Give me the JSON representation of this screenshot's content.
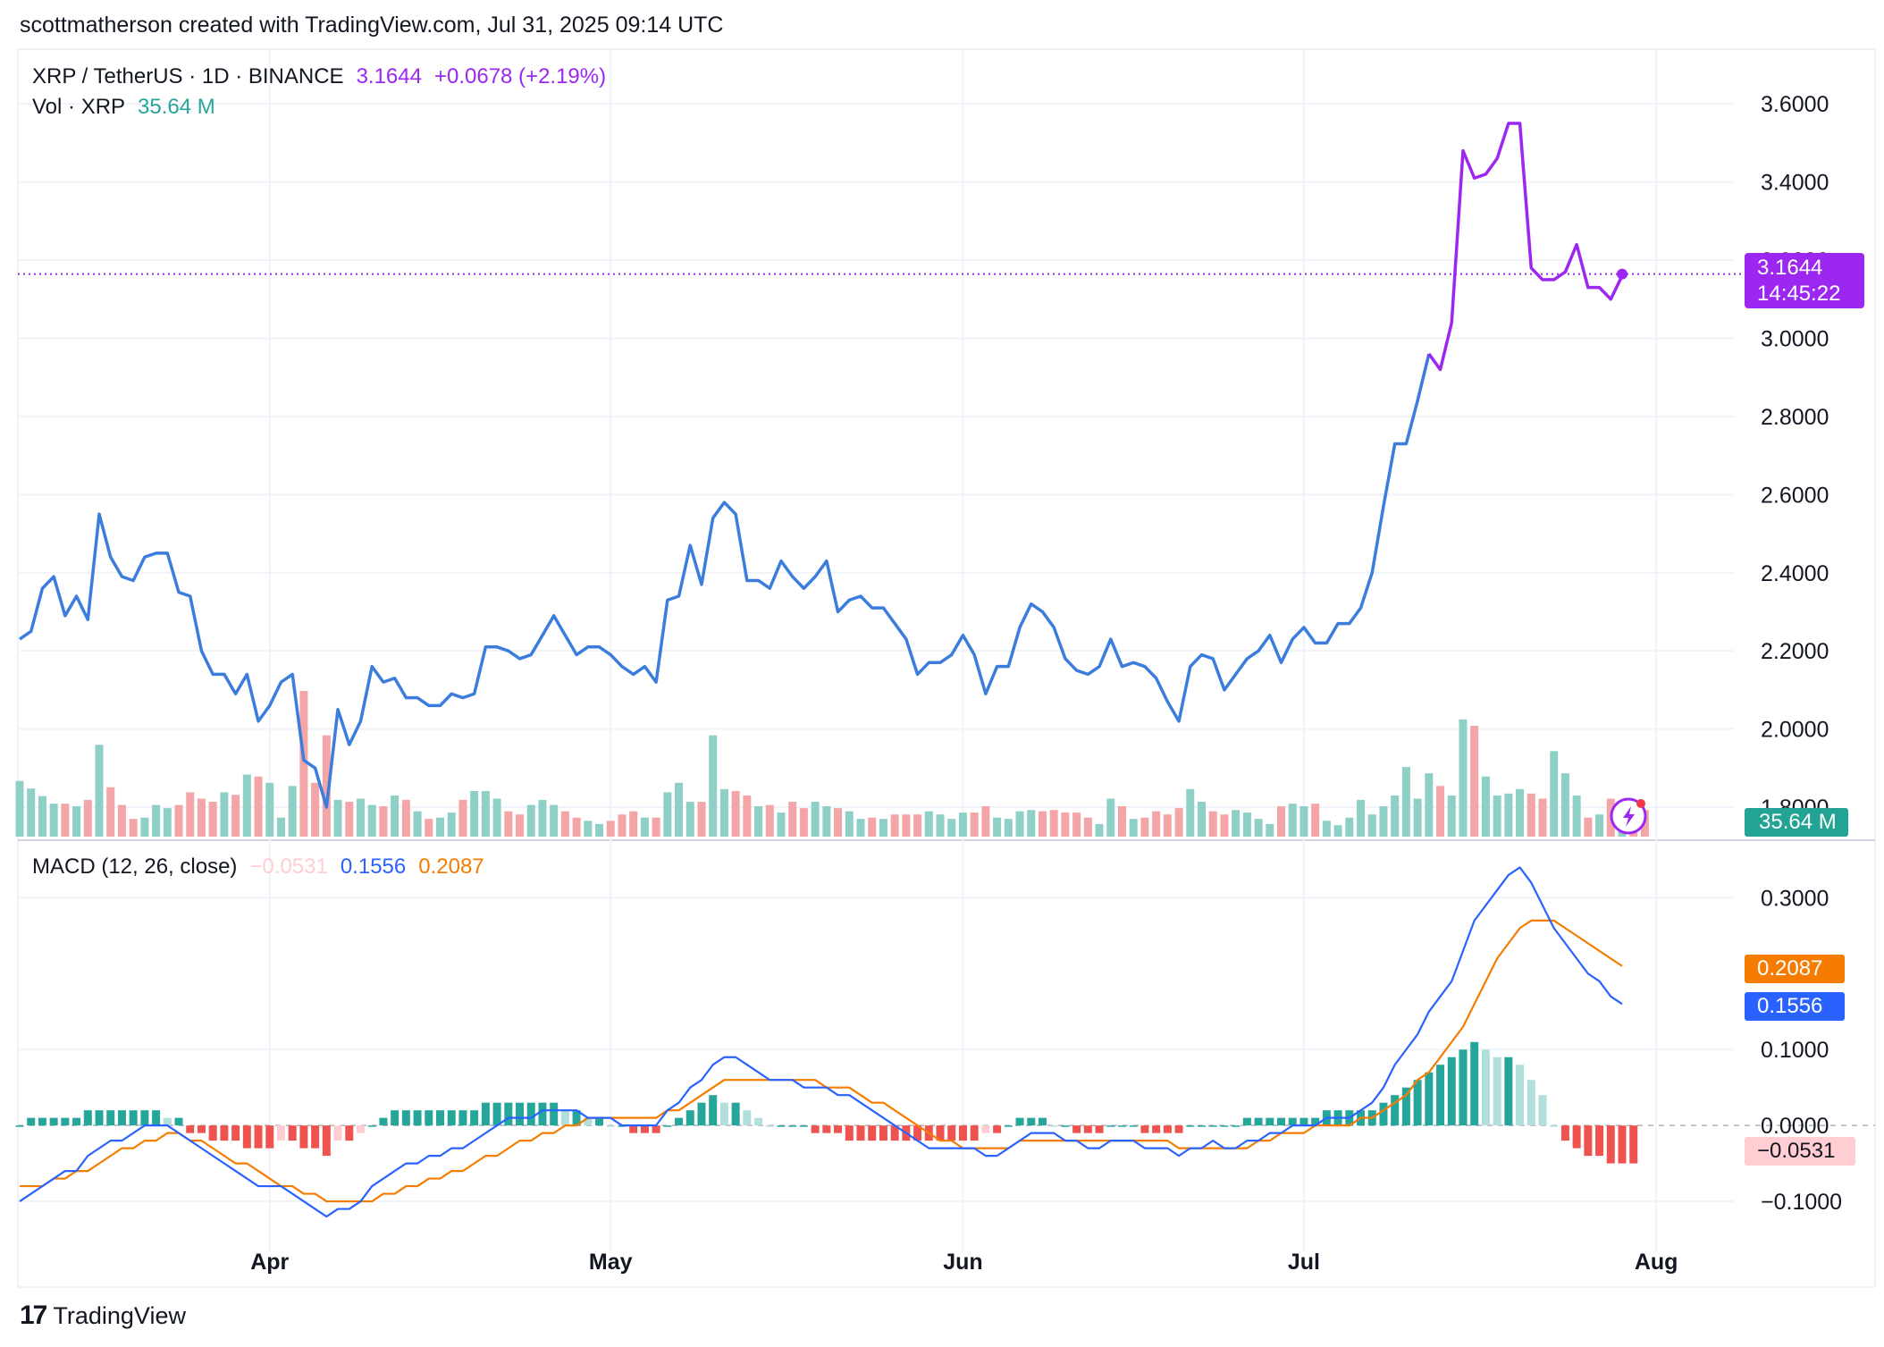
{
  "header": {
    "attribution": "scottmatherson created with TradingView.com, Jul 31, 2025 09:14 UTC"
  },
  "legend": {
    "symbol": "XRP / TetherUS · 1D · BINANCE",
    "price": "3.1644",
    "change": "+0.0678 (+2.19%)",
    "volume_label": "Vol · XRP",
    "volume_value": "35.64 M",
    "macd_label": "MACD (12, 26, close)",
    "macd_hist": "−0.0531",
    "macd_line": "0.1556",
    "macd_signal": "0.2087"
  },
  "tags": {
    "price": "3.1644",
    "countdown": "14:45:22",
    "volume": "35.64 M",
    "signal": "0.2087",
    "macd": "0.1556",
    "hist": "−0.0531"
  },
  "footer": {
    "brand": "TradingView",
    "logo_icon": "tradingview-logo-icon"
  },
  "colors": {
    "price_line": "#3b7ddd",
    "price_line_recent": "#9c27f0",
    "volume_up": "#8fd0c6",
    "volume_down": "#f4a5a8",
    "macd_line": "#2962ff",
    "signal_line": "#f57c00",
    "hist_up_strong": "#26a69a",
    "hist_up_weak": "#b2dfdb",
    "hist_down_strong": "#ef5350",
    "hist_down_weak": "#ffcdd2",
    "grid": "#f0f3fa",
    "text": "#131722"
  },
  "chart_data": [
    {
      "type": "line",
      "title": "XRP / TetherUS · 1D · BINANCE",
      "x_range": [
        "2025-03-10",
        "2025-07-31"
      ],
      "x_tick_labels": [
        "Apr",
        "May",
        "Jun",
        "Jul",
        "Aug"
      ],
      "y_tick_labels": [
        "1.8000",
        "2.0000",
        "2.2000",
        "2.4000",
        "2.6000",
        "2.8000",
        "3.0000",
        "3.2000",
        "3.4000",
        "3.6000"
      ],
      "ylim": [
        1.72,
        3.74
      ],
      "y_axis_side": "right",
      "grid": true,
      "last_value": 3.1644,
      "series": [
        {
          "values": [
            2.23,
            2.25,
            2.36,
            2.39,
            2.29,
            2.34,
            2.28,
            2.55,
            2.44,
            2.39,
            2.38,
            2.44,
            2.45,
            2.45,
            2.35,
            2.34,
            2.2,
            2.14,
            2.14,
            2.09,
            2.14,
            2.02,
            2.06,
            2.12,
            2.14,
            1.92,
            1.9,
            1.8,
            2.05,
            1.96,
            2.02,
            2.16,
            2.12,
            2.13,
            2.08,
            2.08,
            2.06,
            2.06,
            2.09,
            2.08,
            2.09,
            2.21,
            2.21,
            2.2,
            2.18,
            2.19,
            2.24,
            2.29,
            2.24,
            2.19,
            2.21,
            2.21,
            2.19,
            2.16,
            2.14,
            2.16,
            2.12,
            2.33,
            2.34,
            2.47,
            2.37,
            2.54,
            2.58,
            2.55,
            2.38,
            2.38,
            2.36,
            2.43,
            2.39,
            2.36,
            2.39,
            2.43,
            2.3,
            2.33,
            2.34,
            2.31,
            2.31,
            2.27,
            2.23,
            2.14,
            2.17,
            2.17,
            2.19,
            2.24,
            2.19,
            2.09,
            2.16,
            2.16,
            2.26,
            2.32,
            2.3,
            2.26,
            2.18,
            2.15,
            2.14,
            2.16,
            2.23,
            2.16,
            2.17,
            2.16,
            2.13,
            2.07,
            2.02,
            2.16,
            2.19,
            2.18,
            2.1,
            2.14,
            2.18,
            2.2,
            2.24,
            2.17,
            2.23,
            2.26,
            2.22,
            2.22,
            2.27,
            2.27,
            2.31,
            2.4,
            2.57,
            2.73,
            2.73,
            2.84,
            2.96,
            2.92,
            3.04,
            3.48,
            3.41,
            3.42,
            3.46,
            3.55,
            3.55,
            3.18,
            3.15,
            3.15,
            3.17,
            3.24,
            3.13,
            3.13,
            3.1,
            3.16
          ]
        }
      ]
    },
    {
      "type": "bar",
      "title": "Vol · XRP",
      "last_value": "35.64 M",
      "series": [
        {
          "values": [
            88,
            76,
            64,
            52,
            52,
            48,
            58,
            145,
            78,
            50,
            28,
            30,
            50,
            45,
            50,
            70,
            60,
            55,
            70,
            66,
            98,
            95,
            85,
            30,
            80,
            230,
            85,
            160,
            58,
            55,
            60,
            50,
            48,
            65,
            58,
            40,
            28,
            30,
            38,
            58,
            72,
            72,
            60,
            40,
            35,
            50,
            58,
            50,
            40,
            30,
            25,
            20,
            25,
            35,
            40,
            30,
            30,
            70,
            85,
            55,
            55,
            160,
            75,
            72,
            65,
            48,
            50,
            38,
            55,
            45,
            55,
            48,
            45,
            40,
            28,
            30,
            28,
            35,
            35,
            35,
            40,
            35,
            28,
            38,
            38,
            48,
            30,
            28,
            40,
            42,
            40,
            42,
            38,
            38,
            30,
            20,
            60,
            48,
            28,
            30,
            40,
            35,
            45,
            75,
            55,
            40,
            35,
            42,
            38,
            28,
            20,
            48,
            52,
            48,
            52,
            25,
            18,
            30,
            58,
            35,
            48,
            65,
            110,
            60,
            100,
            80,
            65,
            185,
            175,
            95,
            65,
            68,
            75,
            68,
            60,
            135,
            100,
            65,
            30,
            35,
            60,
            48,
            42,
            42
          ]
        }
      ],
      "up_down": "mixed"
    },
    {
      "type": "line",
      "title": "MACD (12, 26, close)",
      "y_tick_labels": [
        "−0.1000",
        "0.0000",
        "0.1000",
        "0.3000"
      ],
      "ylim": [
        -0.16,
        0.37
      ],
      "series": [
        {
          "name": "0.1556",
          "values": [
            -0.1,
            -0.09,
            -0.08,
            -0.07,
            -0.06,
            -0.06,
            -0.04,
            -0.03,
            -0.02,
            -0.02,
            -0.01,
            0.0,
            0.0,
            0.0,
            -0.01,
            -0.02,
            -0.03,
            -0.04,
            -0.05,
            -0.06,
            -0.07,
            -0.08,
            -0.08,
            -0.08,
            -0.09,
            -0.1,
            -0.11,
            -0.12,
            -0.11,
            -0.11,
            -0.1,
            -0.08,
            -0.07,
            -0.06,
            -0.05,
            -0.05,
            -0.04,
            -0.04,
            -0.03,
            -0.03,
            -0.02,
            -0.01,
            0.0,
            0.01,
            0.01,
            0.01,
            0.02,
            0.02,
            0.02,
            0.02,
            0.01,
            0.01,
            0.01,
            0.0,
            0.0,
            0.0,
            0.0,
            0.02,
            0.03,
            0.05,
            0.06,
            0.08,
            0.09,
            0.09,
            0.08,
            0.07,
            0.06,
            0.06,
            0.06,
            0.05,
            0.05,
            0.05,
            0.04,
            0.04,
            0.03,
            0.02,
            0.01,
            0.0,
            -0.01,
            -0.02,
            -0.03,
            -0.03,
            -0.03,
            -0.03,
            -0.03,
            -0.04,
            -0.04,
            -0.03,
            -0.02,
            -0.01,
            -0.01,
            -0.01,
            -0.02,
            -0.02,
            -0.03,
            -0.03,
            -0.02,
            -0.02,
            -0.02,
            -0.03,
            -0.03,
            -0.03,
            -0.04,
            -0.03,
            -0.03,
            -0.02,
            -0.03,
            -0.03,
            -0.02,
            -0.02,
            -0.01,
            -0.01,
            0.0,
            0.0,
            0.0,
            0.01,
            0.01,
            0.01,
            0.02,
            0.03,
            0.05,
            0.08,
            0.1,
            0.12,
            0.15,
            0.17,
            0.19,
            0.23,
            0.27,
            0.29,
            0.31,
            0.33,
            0.34,
            0.32,
            0.29,
            0.26,
            0.24,
            0.22,
            0.2,
            0.19,
            0.17,
            0.16
          ]
        },
        {
          "name": "0.2087",
          "values": [
            -0.08,
            -0.08,
            -0.08,
            -0.07,
            -0.07,
            -0.06,
            -0.06,
            -0.05,
            -0.04,
            -0.03,
            -0.03,
            -0.02,
            -0.02,
            -0.01,
            -0.01,
            -0.02,
            -0.02,
            -0.03,
            -0.04,
            -0.05,
            -0.05,
            -0.06,
            -0.07,
            -0.08,
            -0.08,
            -0.09,
            -0.09,
            -0.1,
            -0.1,
            -0.1,
            -0.1,
            -0.1,
            -0.09,
            -0.09,
            -0.08,
            -0.08,
            -0.07,
            -0.07,
            -0.06,
            -0.06,
            -0.05,
            -0.04,
            -0.04,
            -0.03,
            -0.02,
            -0.02,
            -0.01,
            -0.01,
            0.0,
            0.0,
            0.01,
            0.01,
            0.01,
            0.01,
            0.01,
            0.01,
            0.01,
            0.02,
            0.02,
            0.03,
            0.04,
            0.05,
            0.06,
            0.06,
            0.06,
            0.06,
            0.06,
            0.06,
            0.06,
            0.06,
            0.06,
            0.05,
            0.05,
            0.05,
            0.04,
            0.03,
            0.03,
            0.02,
            0.01,
            0.0,
            -0.01,
            -0.02,
            -0.02,
            -0.03,
            -0.03,
            -0.03,
            -0.03,
            -0.03,
            -0.02,
            -0.02,
            -0.02,
            -0.02,
            -0.02,
            -0.02,
            -0.02,
            -0.02,
            -0.02,
            -0.02,
            -0.02,
            -0.02,
            -0.02,
            -0.02,
            -0.03,
            -0.03,
            -0.03,
            -0.03,
            -0.03,
            -0.03,
            -0.03,
            -0.02,
            -0.02,
            -0.01,
            -0.01,
            -0.01,
            0.0,
            0.0,
            0.0,
            0.0,
            0.01,
            0.01,
            0.02,
            0.03,
            0.04,
            0.06,
            0.07,
            0.09,
            0.11,
            0.13,
            0.16,
            0.19,
            0.22,
            0.24,
            0.26,
            0.27,
            0.27,
            0.27,
            0.26,
            0.25,
            0.24,
            0.23,
            0.22,
            0.21
          ]
        }
      ],
      "histogram": [
        0.0,
        0.01,
        0.01,
        0.01,
        0.01,
        0.01,
        0.02,
        0.02,
        0.02,
        0.02,
        0.02,
        0.02,
        0.02,
        0.01,
        0.01,
        -0.01,
        -0.01,
        -0.02,
        -0.02,
        -0.02,
        -0.03,
        -0.03,
        -0.03,
        -0.02,
        -0.02,
        -0.03,
        -0.03,
        -0.04,
        -0.02,
        -0.02,
        -0.01,
        0.0,
        0.01,
        0.02,
        0.02,
        0.02,
        0.02,
        0.02,
        0.02,
        0.02,
        0.02,
        0.03,
        0.03,
        0.03,
        0.03,
        0.03,
        0.03,
        0.03,
        0.02,
        0.02,
        0.01,
        0.01,
        0.0,
        0.0,
        -0.01,
        -0.01,
        -0.01,
        0.0,
        0.01,
        0.02,
        0.03,
        0.04,
        0.03,
        0.03,
        0.02,
        0.01,
        0.0,
        0.0,
        0.0,
        0.0,
        -0.01,
        -0.01,
        -0.01,
        -0.02,
        -0.02,
        -0.02,
        -0.02,
        -0.02,
        -0.02,
        -0.02,
        -0.02,
        -0.02,
        -0.02,
        -0.02,
        -0.02,
        -0.01,
        -0.01,
        0.0,
        0.01,
        0.01,
        0.01,
        0.0,
        0.0,
        -0.01,
        -0.01,
        -0.01,
        0.0,
        0.0,
        0.0,
        -0.01,
        -0.01,
        -0.01,
        -0.01,
        0.0,
        0.0,
        0.0,
        0.0,
        0.0,
        0.01,
        0.01,
        0.01,
        0.01,
        0.01,
        0.01,
        0.01,
        0.02,
        0.02,
        0.02,
        0.02,
        0.02,
        0.03,
        0.04,
        0.05,
        0.06,
        0.07,
        0.08,
        0.09,
        0.1,
        0.11,
        0.1,
        0.09,
        0.09,
        0.08,
        0.06,
        0.04,
        0.0,
        -0.02,
        -0.03,
        -0.04,
        -0.04,
        -0.05,
        -0.05,
        -0.05
      ]
    }
  ]
}
